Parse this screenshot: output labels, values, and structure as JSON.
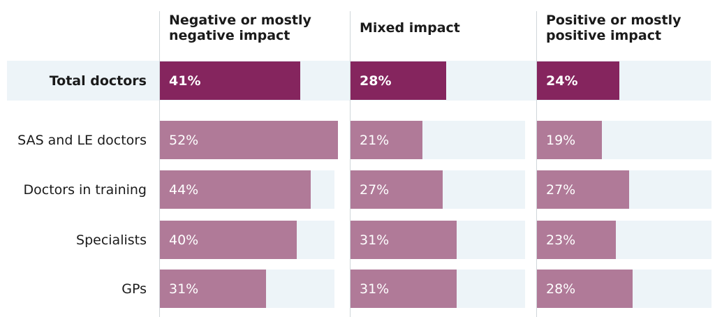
{
  "chart_data": {
    "type": "bar",
    "orientation": "horizontal",
    "grouping": "small-multiples",
    "panels": [
      {
        "name": "Negative or mostly negative impact"
      },
      {
        "name": "Mixed impact"
      },
      {
        "name": "Positive or mostly positive impact"
      }
    ],
    "rows": [
      {
        "label": "Total doctors",
        "values": [
          41,
          28,
          24
        ],
        "highlight": true
      },
      {
        "label": "SAS and LE doctors",
        "values": [
          52,
          21,
          19
        ]
      },
      {
        "label": "Doctors in training",
        "values": [
          44,
          27,
          27
        ]
      },
      {
        "label": "Specialists",
        "values": [
          40,
          31,
          23
        ]
      },
      {
        "label": "GPs",
        "values": [
          31,
          31,
          28
        ]
      }
    ],
    "value_labels": [
      [
        "41%",
        "28%",
        "24%"
      ],
      [
        "52%",
        "21%",
        "19%"
      ],
      [
        "44%",
        "27%",
        "27%"
      ],
      [
        "40%",
        "31%",
        "23%"
      ],
      [
        "31%",
        "31%",
        "28%"
      ]
    ],
    "unit": "%",
    "xlim": [
      0,
      100
    ],
    "colors": {
      "total_bar": "#85255e",
      "sub_bar": "#b07a98",
      "track": "#edf4f8",
      "bar_text": "#ffffff"
    }
  }
}
